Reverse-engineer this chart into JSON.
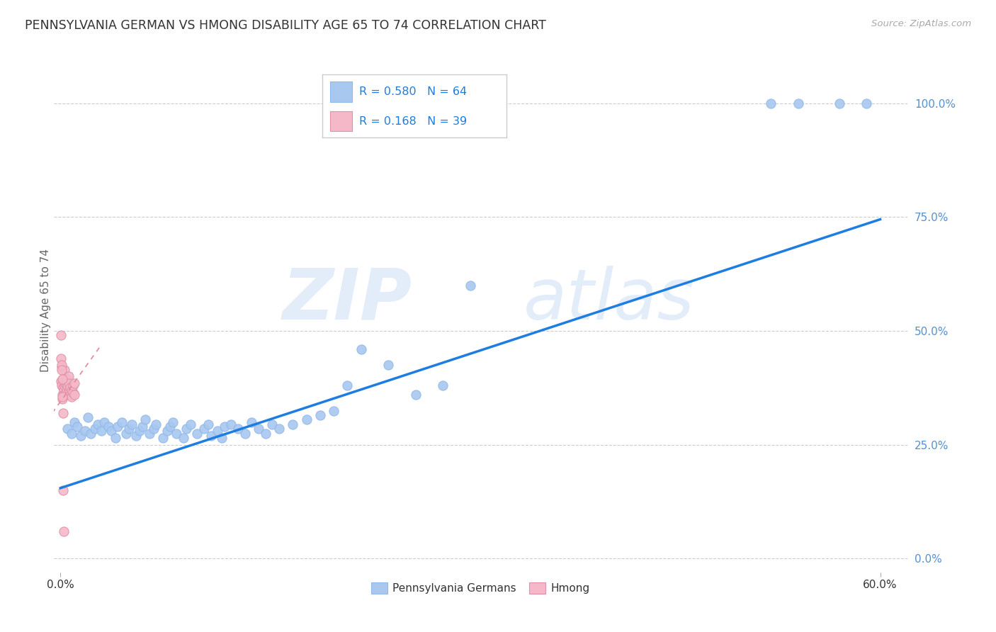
{
  "title": "PENNSYLVANIA GERMAN VS HMONG DISABILITY AGE 65 TO 74 CORRELATION CHART",
  "source": "Source: ZipAtlas.com",
  "ylabel": "Disability Age 65 to 74",
  "x_tick_labels_bottom": [
    "0.0%",
    "60.0%"
  ],
  "x_ticks_bottom": [
    0.0,
    0.6
  ],
  "y_tick_labels_right": [
    "0.0%",
    "25.0%",
    "50.0%",
    "75.0%",
    "100.0%"
  ],
  "y_ticks_right": [
    0.0,
    0.25,
    0.5,
    0.75,
    1.0
  ],
  "xlim": [
    -0.005,
    0.62
  ],
  "ylim": [
    -0.03,
    1.12
  ],
  "legend_r_pa": "0.580",
  "legend_n_pa": "64",
  "legend_r_hmong": "0.168",
  "legend_n_hmong": "39",
  "pa_color": "#a8c8f0",
  "hmong_color": "#f5b8c8",
  "pa_line_color": "#1e7de0",
  "hmong_line_color": "#e08898",
  "watermark_zip": "ZIP",
  "watermark_atlas": "atlas",
  "pa_scatter_x": [
    0.005,
    0.008,
    0.01,
    0.012,
    0.015,
    0.018,
    0.02,
    0.022,
    0.025,
    0.027,
    0.03,
    0.032,
    0.035,
    0.037,
    0.04,
    0.042,
    0.045,
    0.048,
    0.05,
    0.052,
    0.055,
    0.058,
    0.06,
    0.062,
    0.065,
    0.068,
    0.07,
    0.075,
    0.078,
    0.08,
    0.082,
    0.085,
    0.09,
    0.092,
    0.095,
    0.1,
    0.105,
    0.108,
    0.11,
    0.115,
    0.118,
    0.12,
    0.125,
    0.13,
    0.135,
    0.14,
    0.145,
    0.15,
    0.155,
    0.16,
    0.17,
    0.18,
    0.19,
    0.2,
    0.21,
    0.22,
    0.24,
    0.26,
    0.28,
    0.3,
    0.52,
    0.54,
    0.57,
    0.59
  ],
  "pa_scatter_y": [
    0.285,
    0.275,
    0.3,
    0.29,
    0.27,
    0.28,
    0.31,
    0.275,
    0.285,
    0.295,
    0.28,
    0.3,
    0.29,
    0.28,
    0.265,
    0.29,
    0.3,
    0.275,
    0.285,
    0.295,
    0.27,
    0.28,
    0.29,
    0.305,
    0.275,
    0.285,
    0.295,
    0.265,
    0.28,
    0.29,
    0.3,
    0.275,
    0.265,
    0.285,
    0.295,
    0.275,
    0.285,
    0.295,
    0.27,
    0.28,
    0.265,
    0.29,
    0.295,
    0.285,
    0.275,
    0.3,
    0.285,
    0.275,
    0.295,
    0.285,
    0.295,
    0.305,
    0.315,
    0.325,
    0.38,
    0.46,
    0.425,
    0.36,
    0.38,
    0.6,
    1.0,
    1.0,
    1.0,
    1.0
  ],
  "hmong_scatter_x": [
    0.0005,
    0.0008,
    0.001,
    0.0012,
    0.0015,
    0.0018,
    0.002,
    0.0022,
    0.0025,
    0.0028,
    0.003,
    0.0032,
    0.0035,
    0.004,
    0.0042,
    0.0045,
    0.005,
    0.0052,
    0.0055,
    0.006,
    0.0062,
    0.0065,
    0.007,
    0.0072,
    0.008,
    0.0082,
    0.009,
    0.0092,
    0.01,
    0.0102,
    0.0002,
    0.0004,
    0.0006,
    0.0009,
    0.0011,
    0.0013,
    0.0016,
    0.002,
    0.0024
  ],
  "hmong_scatter_y": [
    0.39,
    0.38,
    0.42,
    0.36,
    0.35,
    0.375,
    0.395,
    0.37,
    0.36,
    0.38,
    0.415,
    0.385,
    0.36,
    0.395,
    0.385,
    0.37,
    0.38,
    0.395,
    0.365,
    0.4,
    0.385,
    0.37,
    0.375,
    0.36,
    0.355,
    0.37,
    0.365,
    0.38,
    0.385,
    0.36,
    0.49,
    0.44,
    0.425,
    0.415,
    0.395,
    0.355,
    0.32,
    0.15,
    0.06
  ],
  "pa_line_x": [
    0.0,
    0.6
  ],
  "pa_line_y": [
    0.155,
    0.745
  ],
  "hmong_line_x": [
    -0.006,
    0.03
  ],
  "hmong_line_y": [
    0.32,
    0.47
  ]
}
